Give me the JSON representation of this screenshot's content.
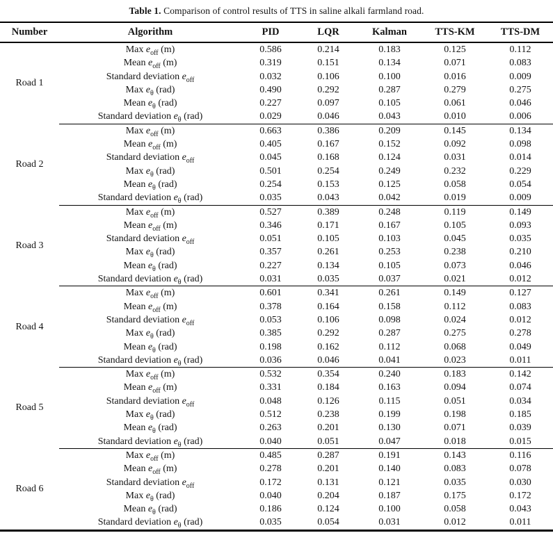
{
  "caption": {
    "label": "Table 1.",
    "text": "Comparison of control results of TTS in saline alkali farmland road."
  },
  "table": {
    "columns": [
      "Number",
      "Algorithm",
      "PID",
      "LQR",
      "Kalman",
      "TTS-KM",
      "TTS-DM"
    ],
    "metrics": [
      {
        "pre": "Max ",
        "sym": "e",
        "sub": "off",
        "post": " (m)"
      },
      {
        "pre": "Mean ",
        "sym": "e",
        "sub": "off",
        "post": " (m)"
      },
      {
        "pre": "Standard deviation ",
        "sym": "e",
        "sub": "off",
        "post": ""
      },
      {
        "pre": "Max ",
        "sym": "e",
        "sub": "θ",
        "post": " (rad)"
      },
      {
        "pre": "Mean ",
        "sym": "e",
        "sub": "θ",
        "post": " (rad)"
      },
      {
        "pre": "Standard deviation ",
        "sym": "e",
        "sub": "θ",
        "post": " (rad)"
      }
    ],
    "roads": [
      {
        "label": "Road 1",
        "values": [
          [
            "0.586",
            "0.214",
            "0.183",
            "0.125",
            "0.112"
          ],
          [
            "0.319",
            "0.151",
            "0.134",
            "0.071",
            "0.083"
          ],
          [
            "0.032",
            "0.106",
            "0.100",
            "0.016",
            "0.009"
          ],
          [
            "0.490",
            "0.292",
            "0.287",
            "0.279",
            "0.275"
          ],
          [
            "0.227",
            "0.097",
            "0.105",
            "0.061",
            "0.046"
          ],
          [
            "0.029",
            "0.046",
            "0.043",
            "0.010",
            "0.006"
          ]
        ]
      },
      {
        "label": "Road 2",
        "values": [
          [
            "0.663",
            "0.386",
            "0.209",
            "0.145",
            "0.134"
          ],
          [
            "0.405",
            "0.167",
            "0.152",
            "0.092",
            "0.098"
          ],
          [
            "0.045",
            "0.168",
            "0.124",
            "0.031",
            "0.014"
          ],
          [
            "0.501",
            "0.254",
            "0.249",
            "0.232",
            "0.229"
          ],
          [
            "0.254",
            "0.153",
            "0.125",
            "0.058",
            "0.054"
          ],
          [
            "0.035",
            "0.043",
            "0.042",
            "0.019",
            "0.009"
          ]
        ]
      },
      {
        "label": "Road 3",
        "values": [
          [
            "0.527",
            "0.389",
            "0.248",
            "0.119",
            "0.149"
          ],
          [
            "0.346",
            "0.171",
            "0.167",
            "0.105",
            "0.093"
          ],
          [
            "0.051",
            "0.105",
            "0.103",
            "0.045",
            "0.035"
          ],
          [
            "0.357",
            "0.261",
            "0.253",
            "0.238",
            "0.210"
          ],
          [
            "0.227",
            "0.134",
            "0.105",
            "0.073",
            "0.046"
          ],
          [
            "0.031",
            "0.035",
            "0.037",
            "0.021",
            "0.012"
          ]
        ]
      },
      {
        "label": "Road 4",
        "values": [
          [
            "0.601",
            "0.341",
            "0.261",
            "0.149",
            "0.127"
          ],
          [
            "0.378",
            "0.164",
            "0.158",
            "0.112",
            "0.083"
          ],
          [
            "0.053",
            "0.106",
            "0.098",
            "0.024",
            "0.012"
          ],
          [
            "0.385",
            "0.292",
            "0.287",
            "0.275",
            "0.278"
          ],
          [
            "0.198",
            "0.162",
            "0.112",
            "0.068",
            "0.049"
          ],
          [
            "0.036",
            "0.046",
            "0.041",
            "0.023",
            "0.011"
          ]
        ]
      },
      {
        "label": "Road 5",
        "values": [
          [
            "0.532",
            "0.354",
            "0.240",
            "0.183",
            "0.142"
          ],
          [
            "0.331",
            "0.184",
            "0.163",
            "0.094",
            "0.074"
          ],
          [
            "0.048",
            "0.126",
            "0.115",
            "0.051",
            "0.034"
          ],
          [
            "0.512",
            "0.238",
            "0.199",
            "0.198",
            "0.185"
          ],
          [
            "0.263",
            "0.201",
            "0.130",
            "0.071",
            "0.039"
          ],
          [
            "0.040",
            "0.051",
            "0.047",
            "0.018",
            "0.015"
          ]
        ]
      },
      {
        "label": "Road 6",
        "values": [
          [
            "0.485",
            "0.287",
            "0.191",
            "0.143",
            "0.116"
          ],
          [
            "0.278",
            "0.201",
            "0.140",
            "0.083",
            "0.078"
          ],
          [
            "0.172",
            "0.131",
            "0.121",
            "0.035",
            "0.030"
          ],
          [
            "0.040",
            "0.204",
            "0.187",
            "0.175",
            "0.172"
          ],
          [
            "0.186",
            "0.124",
            "0.100",
            "0.058",
            "0.043"
          ],
          [
            "0.035",
            "0.054",
            "0.031",
            "0.012",
            "0.011"
          ]
        ]
      }
    ]
  },
  "colors": {
    "background": "#ffffff",
    "text": "#141414",
    "rule": "#000000"
  }
}
